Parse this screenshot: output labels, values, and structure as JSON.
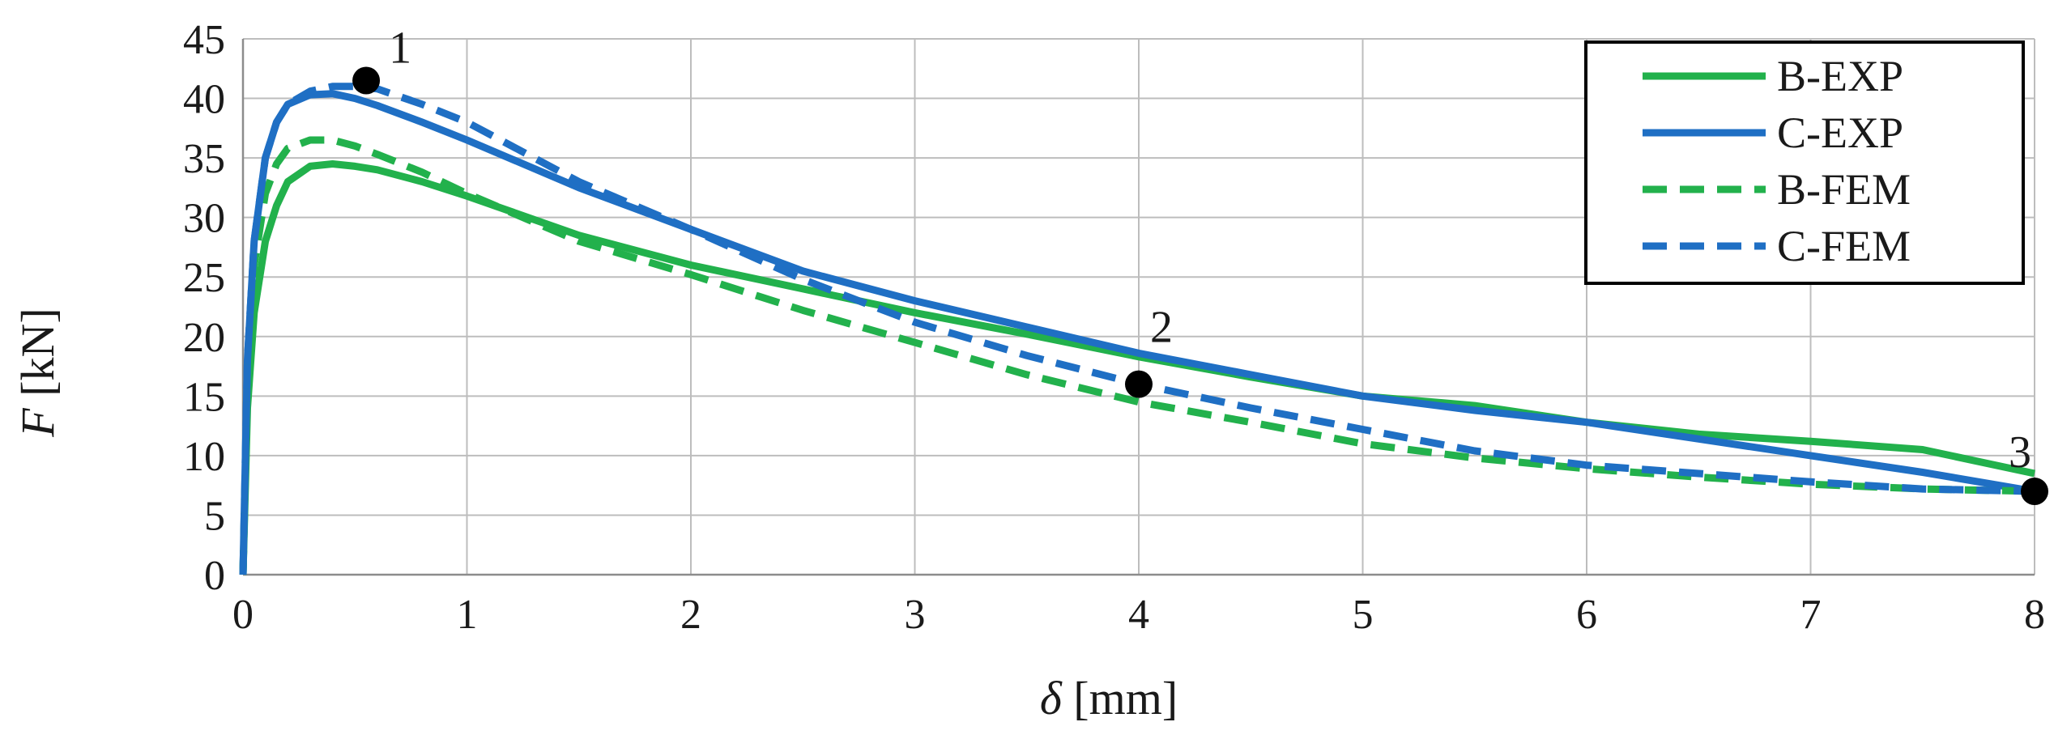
{
  "chart_data": {
    "type": "line",
    "title": "",
    "xlabel": {
      "symbol": "δ",
      "unit": " [mm]"
    },
    "ylabel": {
      "symbol": "F",
      "unit": " [kN]"
    },
    "xlim": [
      0,
      8
    ],
    "ylim": [
      0,
      45
    ],
    "xticks": [
      0,
      1,
      2,
      3,
      4,
      5,
      6,
      7,
      8
    ],
    "yticks": [
      0,
      5,
      10,
      15,
      20,
      25,
      30,
      35,
      40,
      45
    ],
    "grid": true,
    "legend_position": "top-right",
    "series": [
      {
        "name": "B-EXP",
        "color": "#22b14c",
        "dash": "solid",
        "x": [
          0,
          0.02,
          0.05,
          0.1,
          0.15,
          0.2,
          0.3,
          0.4,
          0.5,
          0.6,
          0.8,
          1.0,
          1.5,
          2.0,
          2.5,
          3.0,
          3.5,
          4.0,
          4.5,
          5.0,
          5.5,
          6.0,
          6.5,
          7.0,
          7.5,
          8.0
        ],
        "y": [
          0,
          14,
          22,
          28,
          31,
          33,
          34.3,
          34.5,
          34.3,
          34.0,
          33.0,
          31.8,
          28.5,
          26.0,
          24.0,
          22.0,
          20.2,
          18.3,
          16.6,
          15.0,
          14.2,
          12.8,
          11.8,
          11.2,
          10.5,
          8.5
        ]
      },
      {
        "name": "C-EXP",
        "color": "#1f6fc4",
        "dash": "solid",
        "x": [
          0,
          0.02,
          0.05,
          0.1,
          0.15,
          0.2,
          0.3,
          0.4,
          0.5,
          0.6,
          0.8,
          1.0,
          1.5,
          2.0,
          2.5,
          3.0,
          3.5,
          4.0,
          4.5,
          5.0,
          5.5,
          6.0,
          6.5,
          7.0,
          7.5,
          8.0
        ],
        "y": [
          0,
          18,
          28,
          35,
          38,
          39.5,
          40.3,
          40.4,
          40.0,
          39.4,
          38.0,
          36.5,
          32.5,
          29.0,
          25.5,
          23.0,
          20.8,
          18.6,
          16.8,
          15.0,
          13.8,
          12.8,
          11.4,
          10.0,
          8.6,
          7.0
        ]
      },
      {
        "name": "B-FEM",
        "color": "#22b14c",
        "dash": "dashed",
        "x": [
          0,
          0.02,
          0.05,
          0.1,
          0.15,
          0.2,
          0.3,
          0.4,
          0.5,
          0.6,
          0.8,
          1.0,
          1.5,
          2.0,
          2.5,
          3.0,
          3.5,
          4.0,
          4.5,
          5.0,
          5.5,
          6.0,
          6.5,
          7.0,
          7.5,
          8.0
        ],
        "y": [
          0,
          16,
          26,
          32,
          34.5,
          35.8,
          36.5,
          36.5,
          36.0,
          35.3,
          33.8,
          32.0,
          28.0,
          25.2,
          22.2,
          19.5,
          16.8,
          14.5,
          12.8,
          11.0,
          9.8,
          8.9,
          8.2,
          7.6,
          7.2,
          7.0
        ]
      },
      {
        "name": "C-FEM",
        "color": "#1f6fc4",
        "dash": "dashed",
        "x": [
          0,
          0.02,
          0.05,
          0.1,
          0.15,
          0.2,
          0.3,
          0.4,
          0.5,
          0.6,
          0.8,
          1.0,
          1.5,
          2.0,
          2.5,
          3.0,
          3.5,
          4.0,
          4.5,
          5.0,
          5.5,
          6.0,
          6.5,
          7.0,
          7.5,
          8.0
        ],
        "y": [
          0,
          18,
          28,
          35,
          38,
          39.5,
          40.6,
          41.0,
          41.0,
          40.8,
          39.5,
          38.0,
          33.0,
          29.0,
          24.8,
          21.2,
          18.4,
          16.0,
          14.0,
          12.2,
          10.4,
          9.2,
          8.5,
          7.8,
          7.2,
          7.0
        ]
      }
    ],
    "annotations": [
      {
        "label": "1",
        "x": 0.55,
        "y": 41.5
      },
      {
        "label": "2",
        "x": 4.0,
        "y": 16.0
      },
      {
        "label": "3",
        "x": 8.0,
        "y": 7.0
      }
    ]
  }
}
